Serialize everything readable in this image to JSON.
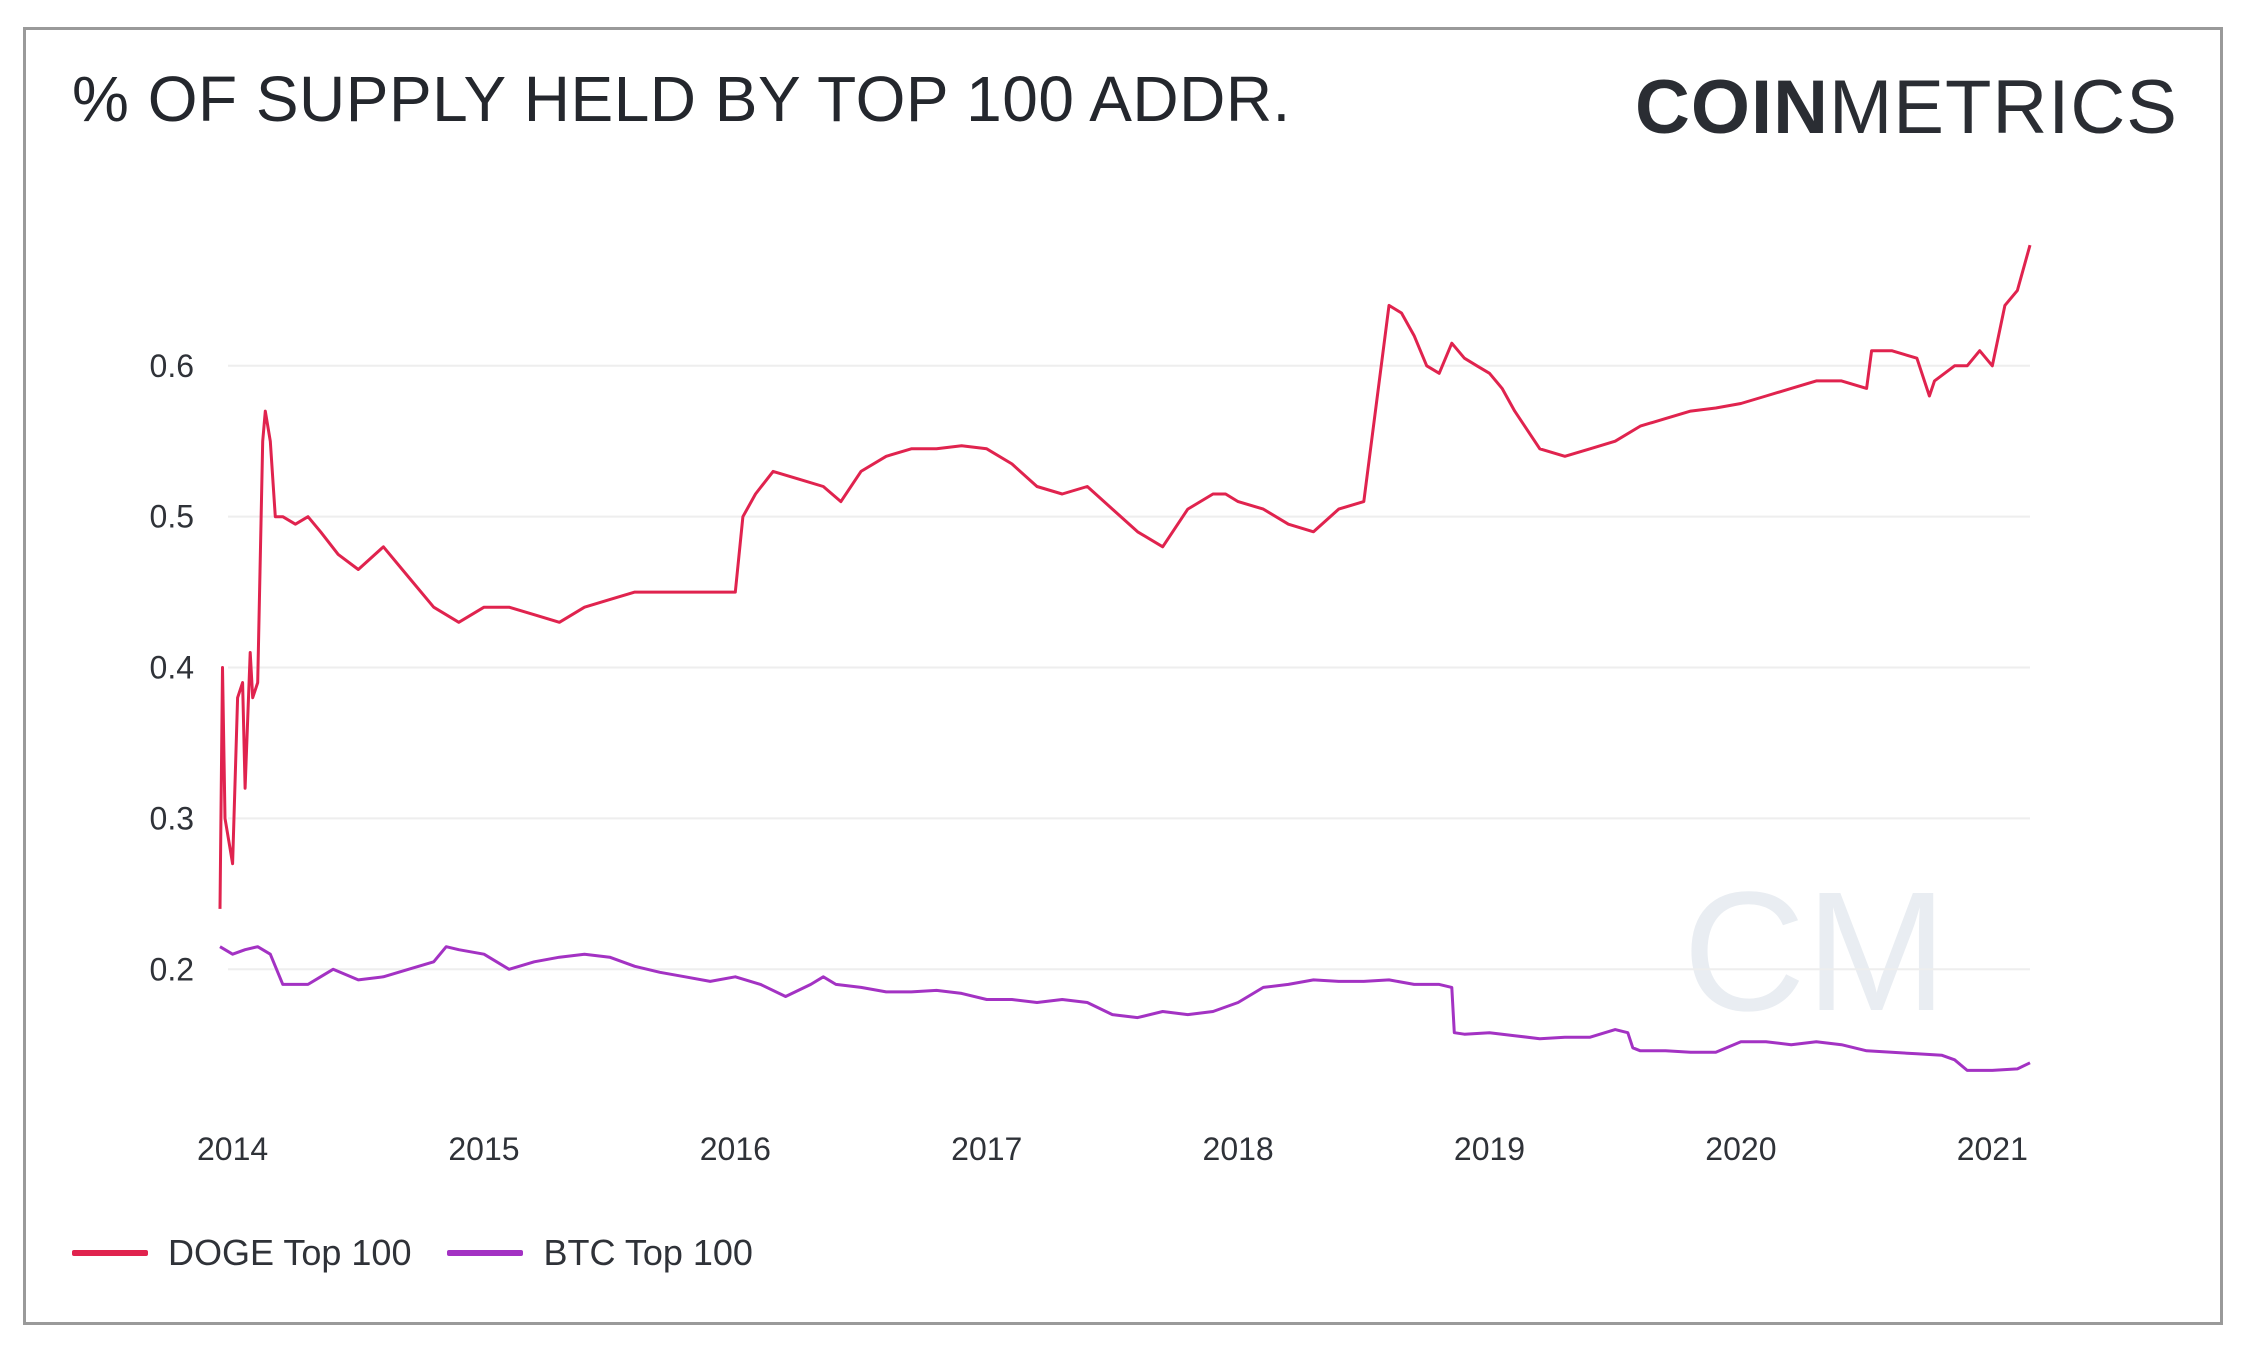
{
  "title": "% OF SUPPLY HELD BY TOP 100 ADDR.",
  "logo": {
    "bold": "COIN",
    "light": "METRICS"
  },
  "chart_data": {
    "type": "line",
    "title": "% OF SUPPLY HELD BY TOP 100 ADDR.",
    "xlabel": "",
    "ylabel": "",
    "x_ticks": [
      "2014",
      "2015",
      "2016",
      "2017",
      "2018",
      "2019",
      "2020",
      "2021"
    ],
    "y_ticks": [
      0.2,
      0.3,
      0.4,
      0.5,
      0.6
    ],
    "xlim": [
      2013.95,
      2021.15
    ],
    "ylim": [
      0.12,
      0.69
    ],
    "grid": "horizontal",
    "legend_position": "bottom-left",
    "series": [
      {
        "name": "DOGE Top 100",
        "color": "#e0234e",
        "x": [
          2013.95,
          2013.96,
          2013.97,
          2013.99,
          2014.0,
          2014.02,
          2014.04,
          2014.05,
          2014.07,
          2014.08,
          2014.1,
          2014.12,
          2014.13,
          2014.15,
          2014.17,
          2014.2,
          2014.25,
          2014.3,
          2014.35,
          2014.42,
          2014.5,
          2014.6,
          2014.7,
          2014.8,
          2014.9,
          2015.0,
          2015.1,
          2015.2,
          2015.3,
          2015.4,
          2015.5,
          2015.6,
          2015.7,
          2015.8,
          2015.9,
          2016.0,
          2016.03,
          2016.08,
          2016.15,
          2016.25,
          2016.35,
          2016.42,
          2016.5,
          2016.6,
          2016.7,
          2016.8,
          2016.9,
          2017.0,
          2017.1,
          2017.2,
          2017.3,
          2017.4,
          2017.5,
          2017.6,
          2017.7,
          2017.8,
          2017.9,
          2017.95,
          2018.0,
          2018.1,
          2018.2,
          2018.3,
          2018.4,
          2018.5,
          2018.6,
          2018.65,
          2018.7,
          2018.75,
          2018.8,
          2018.85,
          2018.9,
          2018.95,
          2019.0,
          2019.05,
          2019.1,
          2019.2,
          2019.3,
          2019.4,
          2019.5,
          2019.6,
          2019.7,
          2019.8,
          2019.9,
          2020.0,
          2020.1,
          2020.2,
          2020.3,
          2020.4,
          2020.5,
          2020.52,
          2020.6,
          2020.7,
          2020.75,
          2020.77,
          2020.85,
          2020.9,
          2020.95,
          2021.0,
          2021.05,
          2021.1,
          2021.15
        ],
        "values": [
          0.24,
          0.4,
          0.3,
          0.28,
          0.27,
          0.38,
          0.39,
          0.32,
          0.41,
          0.38,
          0.39,
          0.55,
          0.57,
          0.55,
          0.5,
          0.5,
          0.495,
          0.5,
          0.49,
          0.475,
          0.465,
          0.48,
          0.46,
          0.44,
          0.43,
          0.44,
          0.44,
          0.435,
          0.43,
          0.44,
          0.445,
          0.45,
          0.45,
          0.45,
          0.45,
          0.45,
          0.5,
          0.515,
          0.53,
          0.525,
          0.52,
          0.51,
          0.53,
          0.54,
          0.545,
          0.545,
          0.547,
          0.545,
          0.535,
          0.52,
          0.515,
          0.52,
          0.505,
          0.49,
          0.48,
          0.505,
          0.515,
          0.515,
          0.51,
          0.505,
          0.495,
          0.49,
          0.505,
          0.51,
          0.64,
          0.635,
          0.62,
          0.6,
          0.595,
          0.615,
          0.605,
          0.6,
          0.595,
          0.585,
          0.57,
          0.545,
          0.54,
          0.545,
          0.55,
          0.56,
          0.565,
          0.57,
          0.572,
          0.575,
          0.58,
          0.585,
          0.59,
          0.59,
          0.585,
          0.61,
          0.61,
          0.605,
          0.58,
          0.59,
          0.6,
          0.6,
          0.61,
          0.6,
          0.64,
          0.65,
          0.68
        ]
      },
      {
        "name": "BTC Top 100",
        "color": "#a332c3",
        "x": [
          2013.95,
          2014.0,
          2014.05,
          2014.1,
          2014.15,
          2014.2,
          2014.25,
          2014.3,
          2014.35,
          2014.4,
          2014.5,
          2014.6,
          2014.7,
          2014.8,
          2014.85,
          2014.9,
          2015.0,
          2015.1,
          2015.2,
          2015.3,
          2015.4,
          2015.5,
          2015.6,
          2015.7,
          2015.8,
          2015.9,
          2016.0,
          2016.1,
          2016.2,
          2016.3,
          2016.35,
          2016.4,
          2016.5,
          2016.6,
          2016.7,
          2016.8,
          2016.9,
          2017.0,
          2017.1,
          2017.2,
          2017.3,
          2017.4,
          2017.5,
          2017.6,
          2017.7,
          2017.8,
          2017.9,
          2018.0,
          2018.1,
          2018.2,
          2018.3,
          2018.4,
          2018.5,
          2018.6,
          2018.7,
          2018.8,
          2018.85,
          2018.86,
          2018.9,
          2019.0,
          2019.1,
          2019.2,
          2019.3,
          2019.4,
          2019.5,
          2019.55,
          2019.57,
          2019.6,
          2019.7,
          2019.8,
          2019.9,
          2020.0,
          2020.1,
          2020.2,
          2020.3,
          2020.4,
          2020.5,
          2020.6,
          2020.7,
          2020.8,
          2020.85,
          2020.9,
          2021.0,
          2021.1,
          2021.15
        ],
        "values": [
          0.215,
          0.21,
          0.213,
          0.215,
          0.21,
          0.19,
          0.19,
          0.19,
          0.195,
          0.2,
          0.193,
          0.195,
          0.2,
          0.205,
          0.215,
          0.213,
          0.21,
          0.2,
          0.205,
          0.208,
          0.21,
          0.208,
          0.202,
          0.198,
          0.195,
          0.192,
          0.195,
          0.19,
          0.182,
          0.19,
          0.195,
          0.19,
          0.188,
          0.185,
          0.185,
          0.186,
          0.184,
          0.18,
          0.18,
          0.178,
          0.18,
          0.178,
          0.17,
          0.168,
          0.172,
          0.17,
          0.172,
          0.178,
          0.188,
          0.19,
          0.193,
          0.192,
          0.192,
          0.193,
          0.19,
          0.19,
          0.188,
          0.158,
          0.157,
          0.158,
          0.156,
          0.154,
          0.155,
          0.155,
          0.16,
          0.158,
          0.148,
          0.146,
          0.146,
          0.145,
          0.145,
          0.152,
          0.152,
          0.15,
          0.152,
          0.15,
          0.146,
          0.145,
          0.144,
          0.143,
          0.14,
          0.133,
          0.133,
          0.134,
          0.138
        ]
      }
    ]
  }
}
